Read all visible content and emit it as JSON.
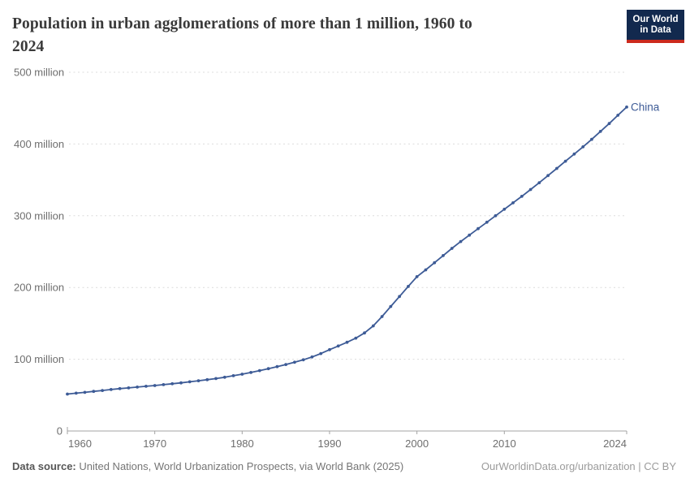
{
  "header": {
    "title_lines": [
      "Population in urban agglomerations of more than 1 million, 1960 to",
      "2024"
    ],
    "logo": {
      "line1": "Our World",
      "line2": "in Data"
    }
  },
  "footer": {
    "source_label": "Data source:",
    "source_text": " United Nations, World Urbanization Prospects, via World Bank (2025)",
    "credit": "OurWorldinData.org/urbanization | CC BY"
  },
  "colors": {
    "line": "#3d5b96",
    "grid": "#dcdcdc",
    "axis": "#a3a3a3",
    "tick_label": "#6e6e6e",
    "title": "#3a3a3a",
    "logo_bg": "#12294e",
    "logo_red": "#cc2a1d"
  },
  "chart_data": {
    "type": "line",
    "title": "Population in urban agglomerations of more than 1 million, 1960 to 2024",
    "xlabel": "",
    "ylabel": "",
    "xlim": [
      1960,
      2024
    ],
    "ylim": [
      0,
      500
    ],
    "grid": true,
    "legend_position": "end-of-line",
    "unit": "million",
    "yticks": [
      {
        "value": 0,
        "label": "0"
      },
      {
        "value": 100,
        "label": "100 million"
      },
      {
        "value": 200,
        "label": "200 million"
      },
      {
        "value": 300,
        "label": "300 million"
      },
      {
        "value": 400,
        "label": "400 million"
      },
      {
        "value": 500,
        "label": "500 million"
      }
    ],
    "xticks": [
      1960,
      1970,
      1980,
      1990,
      2000,
      2010,
      2024
    ],
    "x": [
      1960,
      1961,
      1962,
      1963,
      1964,
      1965,
      1966,
      1967,
      1968,
      1969,
      1970,
      1971,
      1972,
      1973,
      1974,
      1975,
      1976,
      1977,
      1978,
      1979,
      1980,
      1981,
      1982,
      1983,
      1984,
      1985,
      1986,
      1987,
      1988,
      1989,
      1990,
      1991,
      1992,
      1993,
      1994,
      1995,
      1996,
      1997,
      1998,
      1999,
      2000,
      2001,
      2002,
      2003,
      2004,
      2005,
      2006,
      2007,
      2008,
      2009,
      2010,
      2011,
      2012,
      2013,
      2014,
      2015,
      2016,
      2017,
      2018,
      2019,
      2020,
      2021,
      2022,
      2023,
      2024
    ],
    "series": [
      {
        "name": "China",
        "values": [
          51.5,
          52.7,
          53.9,
          55.2,
          56.5,
          57.8,
          59.0,
          60.1,
          61.2,
          62.3,
          63.4,
          64.6,
          65.8,
          67.1,
          68.5,
          70.0,
          71.5,
          73.1,
          74.9,
          77.0,
          79.2,
          81.6,
          84.2,
          86.9,
          89.7,
          92.7,
          95.8,
          99.2,
          103.2,
          107.9,
          113.4,
          118.4,
          123.6,
          129.4,
          136.6,
          146.5,
          159.5,
          173.5,
          187.5,
          201.5,
          215.0,
          224.5,
          234.5,
          244.5,
          254.5,
          264.0,
          273.0,
          282.0,
          291.0,
          300.0,
          309.0,
          318.0,
          327.0,
          336.5,
          346.0,
          356.0,
          366.0,
          376.0,
          386.0,
          396.0,
          406.5,
          417.5,
          428.5,
          440.0,
          451.5
        ]
      }
    ]
  }
}
